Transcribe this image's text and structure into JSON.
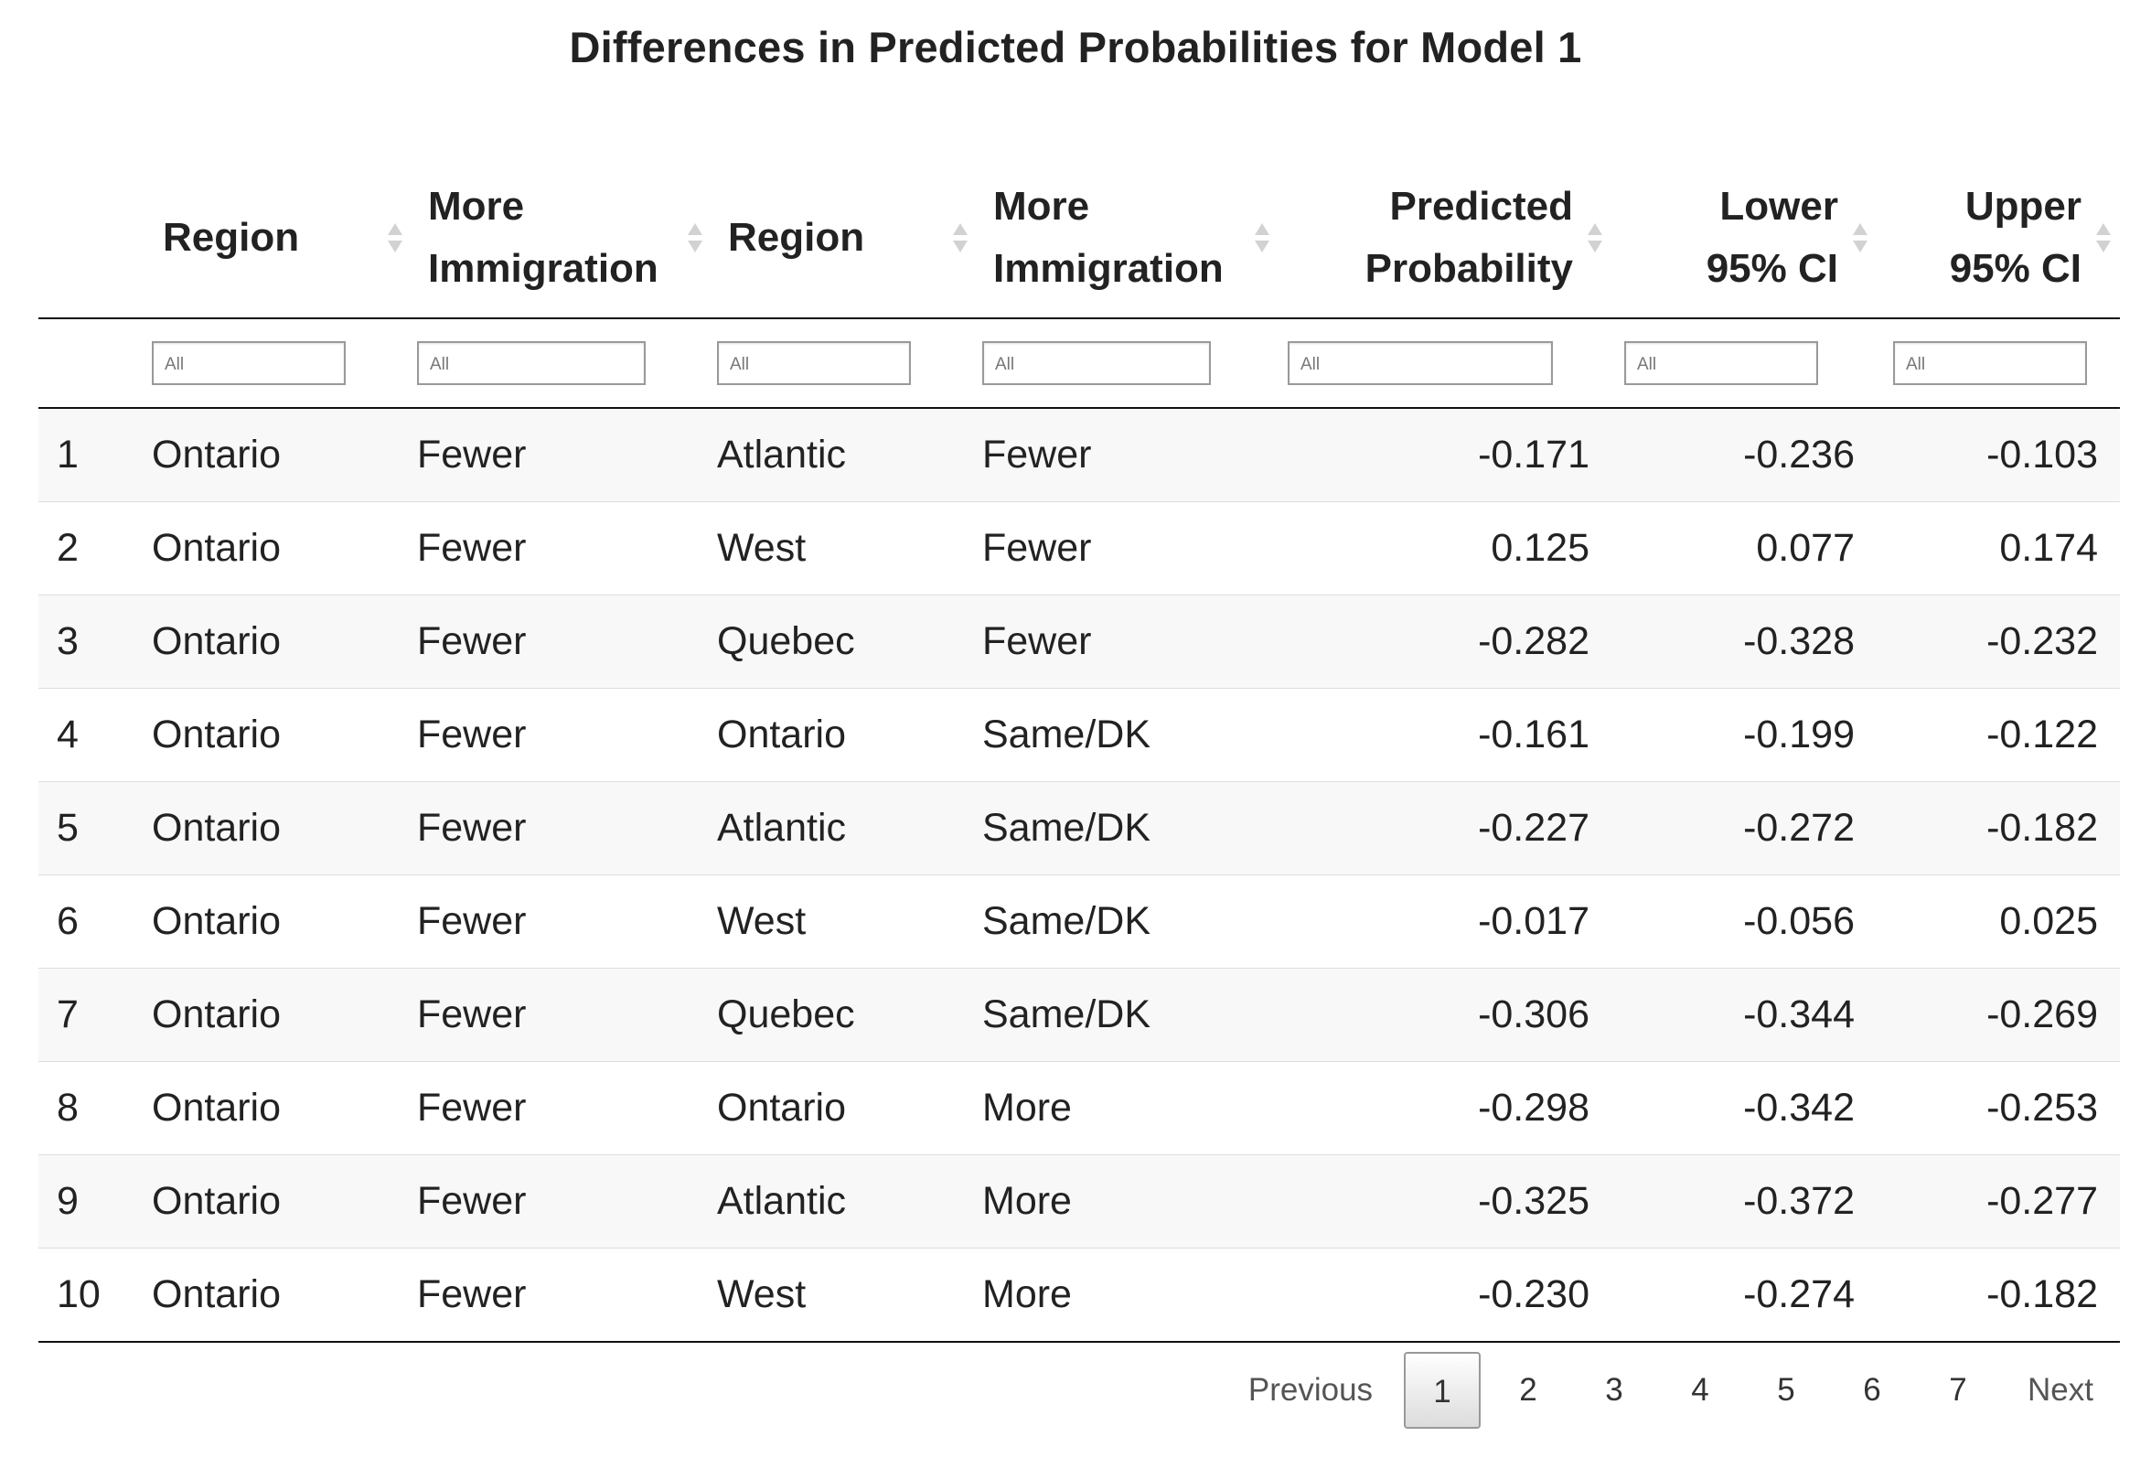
{
  "title": "Differences in Predicted Probabilities for Model 1",
  "columns": [
    {
      "lines": [
        "",
        ""
      ]
    },
    {
      "lines": [
        "Region",
        ""
      ]
    },
    {
      "lines": [
        "More",
        "Immigration"
      ]
    },
    {
      "lines": [
        "Region",
        ""
      ]
    },
    {
      "lines": [
        "More",
        "Immigration"
      ]
    },
    {
      "lines": [
        "Predicted",
        "Probability"
      ]
    },
    {
      "lines": [
        "Lower",
        "95% CI"
      ]
    },
    {
      "lines": [
        "Upper",
        "95% CI"
      ]
    }
  ],
  "filter_placeholder": "All",
  "rows": [
    [
      "1",
      "Ontario",
      "Fewer",
      "Atlantic",
      "Fewer",
      "-0.171",
      "-0.236",
      "-0.103"
    ],
    [
      "2",
      "Ontario",
      "Fewer",
      "West",
      "Fewer",
      "0.125",
      "0.077",
      "0.174"
    ],
    [
      "3",
      "Ontario",
      "Fewer",
      "Quebec",
      "Fewer",
      "-0.282",
      "-0.328",
      "-0.232"
    ],
    [
      "4",
      "Ontario",
      "Fewer",
      "Ontario",
      "Same/DK",
      "-0.161",
      "-0.199",
      "-0.122"
    ],
    [
      "5",
      "Ontario",
      "Fewer",
      "Atlantic",
      "Same/DK",
      "-0.227",
      "-0.272",
      "-0.182"
    ],
    [
      "6",
      "Ontario",
      "Fewer",
      "West",
      "Same/DK",
      "-0.017",
      "-0.056",
      "0.025"
    ],
    [
      "7",
      "Ontario",
      "Fewer",
      "Quebec",
      "Same/DK",
      "-0.306",
      "-0.344",
      "-0.269"
    ],
    [
      "8",
      "Ontario",
      "Fewer",
      "Ontario",
      "More",
      "-0.298",
      "-0.342",
      "-0.253"
    ],
    [
      "9",
      "Ontario",
      "Fewer",
      "Atlantic",
      "More",
      "-0.325",
      "-0.372",
      "-0.277"
    ],
    [
      "10",
      "Ontario",
      "Fewer",
      "West",
      "More",
      "-0.230",
      "-0.274",
      "-0.182"
    ]
  ],
  "pagination": {
    "previous": "Previous",
    "pages": [
      "1",
      "2",
      "3",
      "4",
      "5",
      "6",
      "7"
    ],
    "current_page": "1",
    "next": "Next"
  }
}
